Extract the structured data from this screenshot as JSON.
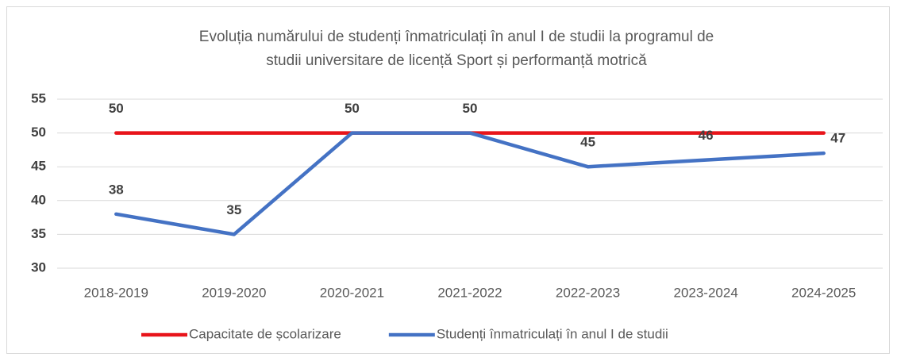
{
  "chart_data": {
    "type": "line",
    "title": [
      "Evoluția numărului de studenți înmatriculați în anul I de studii la programul de",
      "studii universitare de licență Sport și performanță motrică"
    ],
    "categories": [
      "2018-2019",
      "2019-2020",
      "2020-2021",
      "2021-2022",
      "2022-2023",
      "2023-2024",
      "2024-2025"
    ],
    "series": [
      {
        "name": "Capacitate de școlarizare",
        "color": "#e8141a",
        "values": [
          50,
          50,
          50,
          50,
          50,
          50,
          50
        ],
        "value_labels": [
          "50",
          null,
          null,
          null,
          null,
          null,
          null
        ]
      },
      {
        "name": "Studenți înmatriculați în anul I de studii",
        "color": "#4472c4",
        "values": [
          38,
          35,
          50,
          50,
          45,
          46,
          47
        ]
      }
    ],
    "ylim": [
      30,
      55
    ],
    "yticks": [
      30,
      35,
      40,
      45,
      50,
      55
    ],
    "grid": true,
    "legend": "bottom"
  }
}
